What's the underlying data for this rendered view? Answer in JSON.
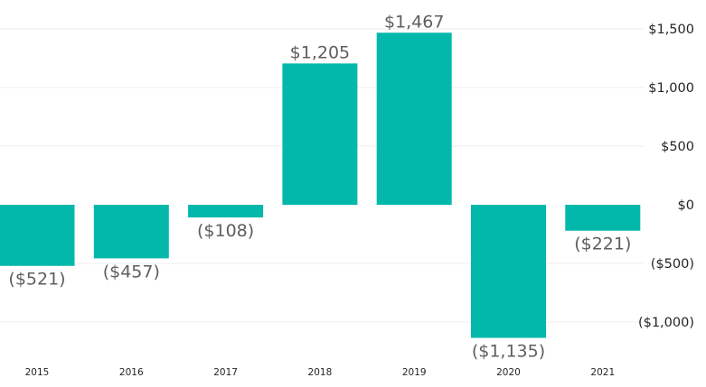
{
  "chart_data": {
    "type": "bar",
    "title": "",
    "xlabel": "",
    "ylabel": "",
    "categories": [
      "2015",
      "2016",
      "2017",
      "2018",
      "2019",
      "2020",
      "2021"
    ],
    "values": [
      -521,
      -457,
      -108,
      1205,
      1467,
      -1135,
      -221
    ],
    "data_labels": [
      "($521)",
      "($457)",
      "($108)",
      "$1,205",
      "$1,467",
      "($1,135)",
      "($221)"
    ],
    "ylim": [
      -1250,
      1600
    ],
    "yticks": [
      {
        "value": 1500,
        "label": "$1,500"
      },
      {
        "value": 1000,
        "label": "$1,000"
      },
      {
        "value": 500,
        "label": "$500"
      },
      {
        "value": 0,
        "label": "$0"
      },
      {
        "value": -500,
        "label": "($500)"
      },
      {
        "value": -1000,
        "label": "($1,000)"
      }
    ],
    "y_axis_position": "right",
    "grid": true,
    "legend": "none",
    "bar_color": "#01b8aa"
  }
}
